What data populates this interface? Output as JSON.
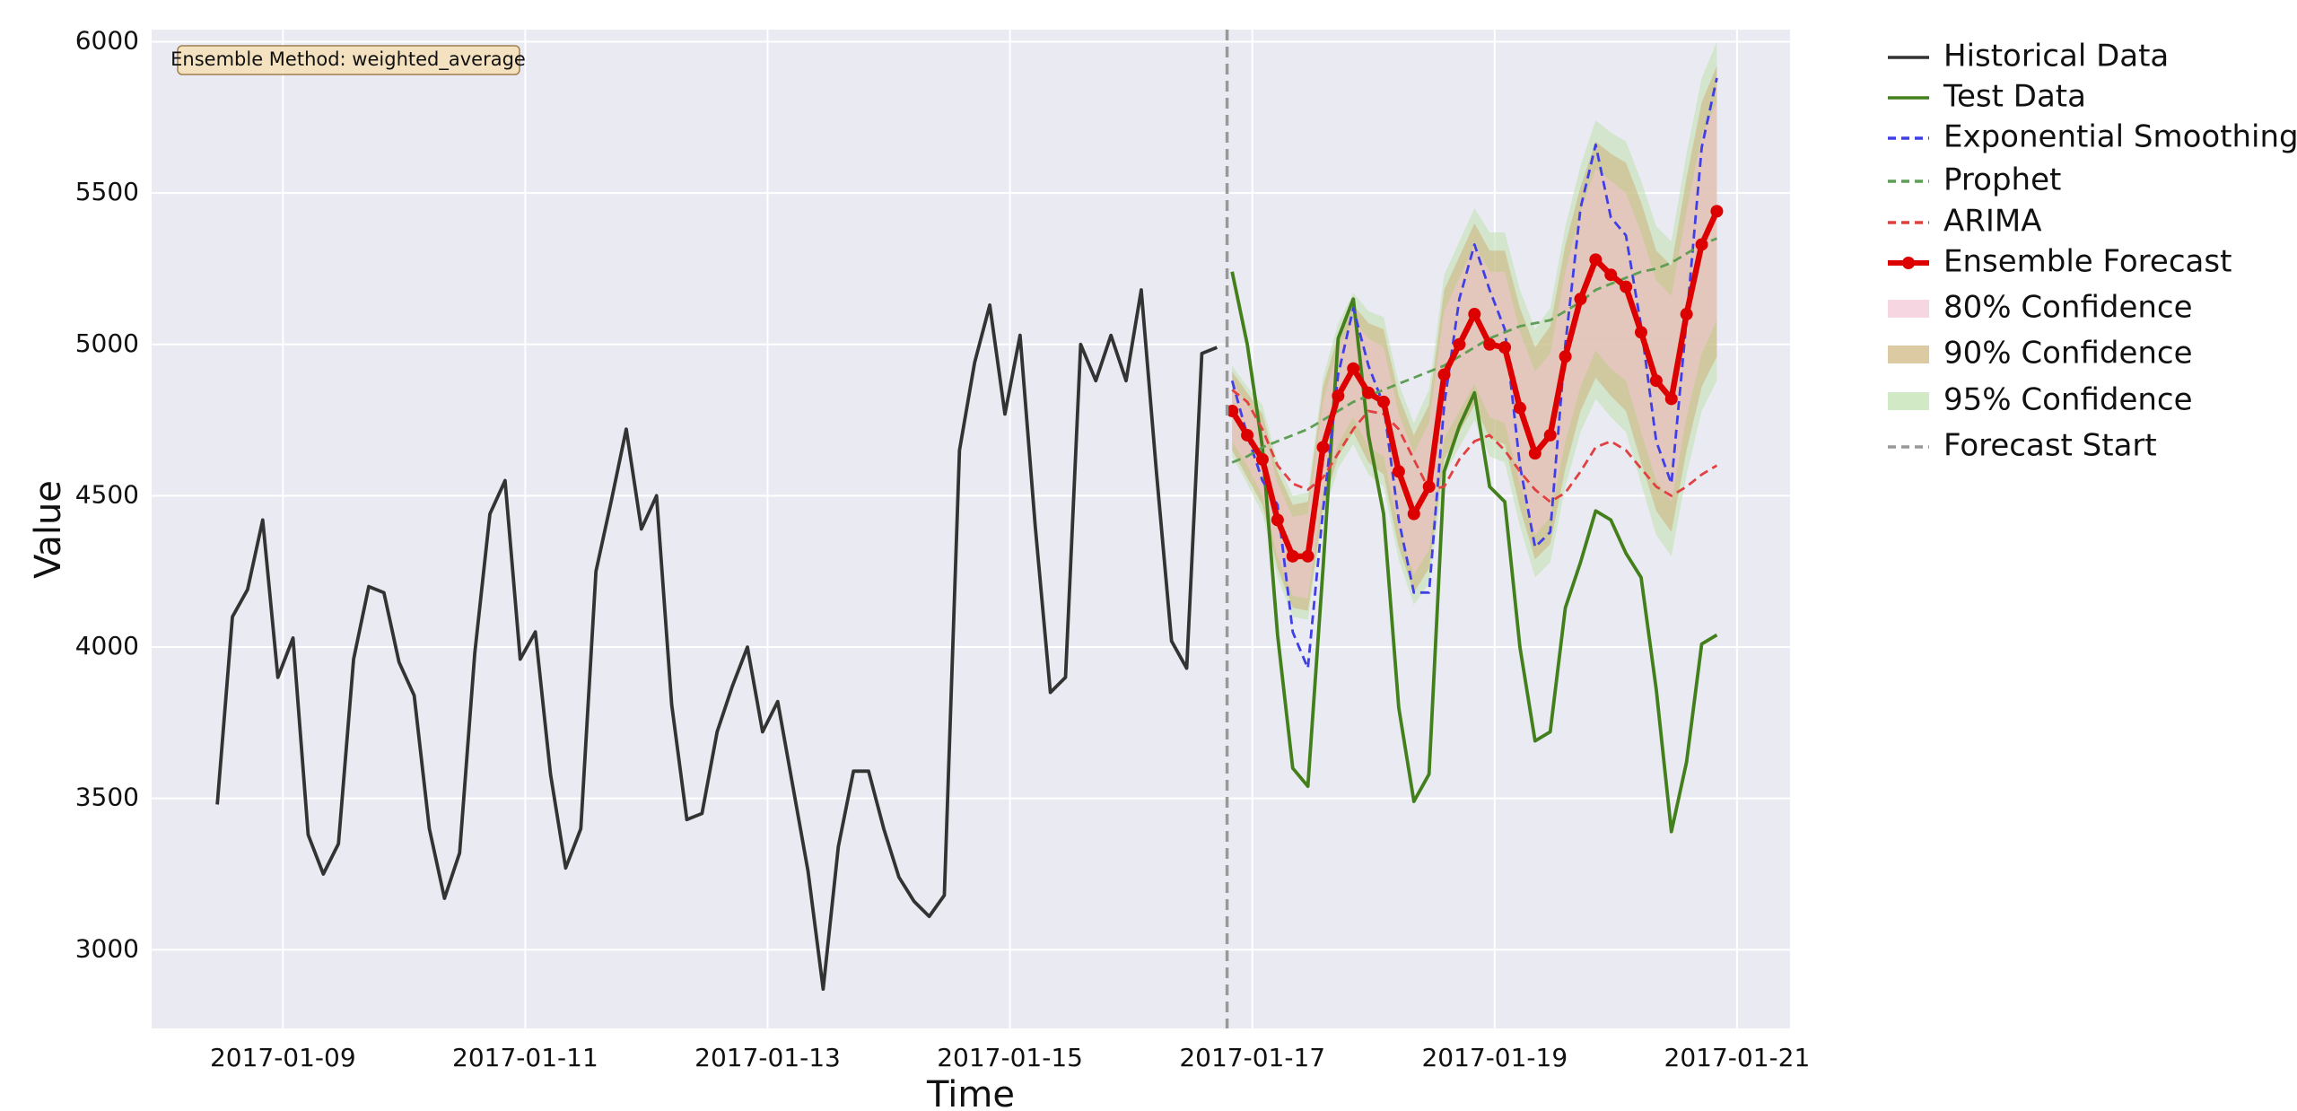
{
  "chart_data": {
    "type": "line",
    "x_label": "Time",
    "y_label": "Value",
    "annotation": "Ensemble Method: weighted_average",
    "grid": true,
    "legend": "outside-right",
    "xlim": [
      "2017-01-07T22:00",
      "2017-01-21T10:30"
    ],
    "xticks": [
      "2017-01-09",
      "2017-01-11",
      "2017-01-13",
      "2017-01-15",
      "2017-01-17",
      "2017-01-19",
      "2017-01-21"
    ],
    "ylim": [
      2740,
      6040
    ],
    "yticks": [
      3000,
      3500,
      4000,
      4500,
      5000,
      5500,
      6000
    ],
    "forecast_x": [
      "2017-01-16T20:00",
      "2017-01-16T23:00",
      "2017-01-17T02:00",
      "2017-01-17T05:00",
      "2017-01-17T08:00",
      "2017-01-17T11:00",
      "2017-01-17T14:00",
      "2017-01-17T17:00",
      "2017-01-17T20:00",
      "2017-01-17T23:00",
      "2017-01-18T02:00",
      "2017-01-18T05:00",
      "2017-01-18T08:00",
      "2017-01-18T11:00",
      "2017-01-18T14:00",
      "2017-01-18T17:00",
      "2017-01-18T20:00",
      "2017-01-18T23:00",
      "2017-01-19T02:00",
      "2017-01-19T05:00",
      "2017-01-19T08:00",
      "2017-01-19T11:00",
      "2017-01-19T14:00",
      "2017-01-19T17:00",
      "2017-01-19T20:00",
      "2017-01-19T23:00",
      "2017-01-20T02:00",
      "2017-01-20T05:00",
      "2017-01-20T08:00",
      "2017-01-20T11:00",
      "2017-01-20T14:00",
      "2017-01-20T17:00",
      "2017-01-20T20:00"
    ],
    "series": [
      {
        "name": "Historical Data",
        "color": "#333333",
        "style": "solid",
        "x": [
          "2017-01-08T11:00",
          "2017-01-08T14:00",
          "2017-01-08T17:00",
          "2017-01-08T20:00",
          "2017-01-08T23:00",
          "2017-01-09T02:00",
          "2017-01-09T05:00",
          "2017-01-09T08:00",
          "2017-01-09T11:00",
          "2017-01-09T14:00",
          "2017-01-09T17:00",
          "2017-01-09T20:00",
          "2017-01-09T23:00",
          "2017-01-10T02:00",
          "2017-01-10T05:00",
          "2017-01-10T08:00",
          "2017-01-10T11:00",
          "2017-01-10T14:00",
          "2017-01-10T17:00",
          "2017-01-10T20:00",
          "2017-01-10T23:00",
          "2017-01-11T02:00",
          "2017-01-11T05:00",
          "2017-01-11T08:00",
          "2017-01-11T11:00",
          "2017-01-11T14:00",
          "2017-01-11T17:00",
          "2017-01-11T20:00",
          "2017-01-11T23:00",
          "2017-01-12T02:00",
          "2017-01-12T05:00",
          "2017-01-12T08:00",
          "2017-01-12T11:00",
          "2017-01-12T14:00",
          "2017-01-12T17:00",
          "2017-01-12T20:00",
          "2017-01-12T23:00",
          "2017-01-13T02:00",
          "2017-01-13T05:00",
          "2017-01-13T08:00",
          "2017-01-13T11:00",
          "2017-01-13T14:00",
          "2017-01-13T17:00",
          "2017-01-13T20:00",
          "2017-01-13T23:00",
          "2017-01-14T02:00",
          "2017-01-14T05:00",
          "2017-01-14T08:00",
          "2017-01-14T11:00",
          "2017-01-14T14:00",
          "2017-01-14T17:00",
          "2017-01-14T20:00",
          "2017-01-14T23:00",
          "2017-01-15T02:00",
          "2017-01-15T05:00",
          "2017-01-15T08:00",
          "2017-01-15T11:00",
          "2017-01-15T14:00",
          "2017-01-15T17:00",
          "2017-01-15T20:00",
          "2017-01-15T23:00",
          "2017-01-16T02:00",
          "2017-01-16T05:00",
          "2017-01-16T08:00",
          "2017-01-16T11:00",
          "2017-01-16T14:00",
          "2017-01-16T17:00"
        ],
        "values": [
          3480,
          4100,
          4190,
          4420,
          3900,
          4030,
          3380,
          3250,
          3350,
          3960,
          4200,
          4180,
          3950,
          3840,
          3400,
          3170,
          3320,
          3980,
          4440,
          4550,
          3960,
          4050,
          3580,
          3270,
          3400,
          4250,
          4480,
          4720,
          4390,
          4500,
          3810,
          3430,
          3450,
          3720,
          3870,
          4000,
          3720,
          3820,
          3540,
          3260,
          2870,
          3340,
          3590,
          3590,
          3400,
          3240,
          3160,
          3110,
          3180,
          4650,
          4940,
          5130,
          4770,
          5030,
          4400,
          3850,
          3900,
          5000,
          4880,
          5030,
          4880,
          5180,
          4580,
          4020,
          3930,
          4970,
          4990
        ]
      },
      {
        "name": "Test Data",
        "color": "#43801c",
        "style": "solid",
        "values": [
          5240,
          5000,
          4660,
          4040,
          3600,
          3540,
          4260,
          5020,
          5150,
          4700,
          4440,
          3800,
          3490,
          3580,
          4580,
          4730,
          4840,
          4530,
          4480,
          4000,
          3690,
          3720,
          4130,
          4280,
          4450,
          4420,
          4310,
          4230,
          3860,
          3390,
          3620,
          4010,
          4040
        ]
      },
      {
        "name": "Exponential Smoothing",
        "color": "#3f3fe8",
        "style": "dashed",
        "values": [
          4880,
          4700,
          4550,
          4470,
          4050,
          3930,
          4450,
          4900,
          5120,
          4930,
          4800,
          4420,
          4180,
          4180,
          4800,
          5150,
          5330,
          5180,
          5050,
          4600,
          4330,
          4380,
          5000,
          5450,
          5660,
          5420,
          5360,
          5060,
          4680,
          4540,
          5080,
          5650,
          5880
        ]
      },
      {
        "name": "Prophet",
        "color": "#5e9e55",
        "style": "dashed",
        "values": [
          4610,
          4630,
          4660,
          4680,
          4700,
          4720,
          4750,
          4780,
          4810,
          4830,
          4850,
          4870,
          4890,
          4910,
          4930,
          4960,
          4990,
          5020,
          5040,
          5060,
          5070,
          5080,
          5110,
          5140,
          5180,
          5200,
          5220,
          5240,
          5250,
          5270,
          5300,
          5330,
          5350
        ]
      },
      {
        "name": "ARIMA",
        "color": "#e04040",
        "style": "dashed",
        "values": [
          4850,
          4810,
          4720,
          4600,
          4540,
          4520,
          4560,
          4640,
          4720,
          4780,
          4770,
          4720,
          4620,
          4520,
          4530,
          4620,
          4680,
          4700,
          4650,
          4580,
          4520,
          4480,
          4510,
          4580,
          4660,
          4680,
          4650,
          4590,
          4530,
          4500,
          4530,
          4570,
          4600
        ]
      },
      {
        "name": "Ensemble Forecast",
        "color": "#dd0000",
        "style": "solid",
        "markers": true,
        "values": [
          4780,
          4700,
          4620,
          4420,
          4300,
          4300,
          4660,
          4830,
          4920,
          4840,
          4810,
          4580,
          4440,
          4530,
          4900,
          5000,
          5100,
          5000,
          4990,
          4790,
          4640,
          4700,
          4960,
          5150,
          5280,
          5230,
          5190,
          5040,
          4880,
          4820,
          5100,
          5330,
          5440
        ]
      }
    ],
    "bands": [
      {
        "name": "80% Confidence",
        "color": "#f2c4d4",
        "lower": [
          4680,
          4600,
          4500,
          4300,
          4170,
          4160,
          4510,
          4670,
          4760,
          4660,
          4630,
          4390,
          4240,
          4320,
          4690,
          4780,
          4870,
          4760,
          4740,
          4540,
          4370,
          4430,
          4680,
          4860,
          4980,
          4920,
          4880,
          4710,
          4550,
          4480,
          4760,
          4970,
          5080
        ],
        "upper": [
          4880,
          4800,
          4740,
          4540,
          4430,
          4440,
          4810,
          4990,
          5080,
          5020,
          4990,
          4770,
          4640,
          4740,
          5110,
          5220,
          5330,
          5240,
          5240,
          5040,
          4910,
          4970,
          5240,
          5440,
          5580,
          5540,
          5500,
          5370,
          5210,
          5160,
          5440,
          5690,
          5800
        ]
      },
      {
        "name": "90% Confidence",
        "color": "#cdb37a",
        "lower": [
          4650,
          4560,
          4470,
          4260,
          4130,
          4120,
          4460,
          4630,
          4710,
          4610,
          4570,
          4330,
          4180,
          4260,
          4620,
          4710,
          4800,
          4690,
          4670,
          4460,
          4290,
          4340,
          4590,
          4780,
          4890,
          4830,
          4780,
          4610,
          4450,
          4380,
          4650,
          4860,
          4960
        ],
        "upper": [
          4910,
          4840,
          4770,
          4580,
          4470,
          4480,
          4860,
          5030,
          5130,
          5070,
          5050,
          4830,
          4700,
          4800,
          5180,
          5290,
          5400,
          5310,
          5310,
          5120,
          4990,
          5060,
          5330,
          5520,
          5670,
          5630,
          5600,
          5470,
          5310,
          5260,
          5550,
          5800,
          5920
        ]
      },
      {
        "name": "95% Confidence",
        "color": "#bfe0ad",
        "lower": [
          4630,
          4540,
          4440,
          4230,
          4100,
          4090,
          4430,
          4590,
          4670,
          4570,
          4530,
          4290,
          4140,
          4210,
          4570,
          4660,
          4750,
          4630,
          4610,
          4400,
          4230,
          4280,
          4530,
          4710,
          4820,
          4760,
          4710,
          4540,
          4370,
          4300,
          4570,
          4780,
          4880
        ],
        "upper": [
          4930,
          4860,
          4800,
          4610,
          4500,
          4510,
          4890,
          5070,
          5170,
          5110,
          5090,
          4870,
          4740,
          4850,
          5230,
          5340,
          5450,
          5370,
          5370,
          5180,
          5050,
          5120,
          5390,
          5590,
          5740,
          5700,
          5670,
          5540,
          5390,
          5340,
          5630,
          5880,
          6000
        ]
      }
    ],
    "vlines": [
      {
        "name": "Forecast Start",
        "x": "2017-01-16T19:00",
        "color": "#999999"
      }
    ]
  }
}
